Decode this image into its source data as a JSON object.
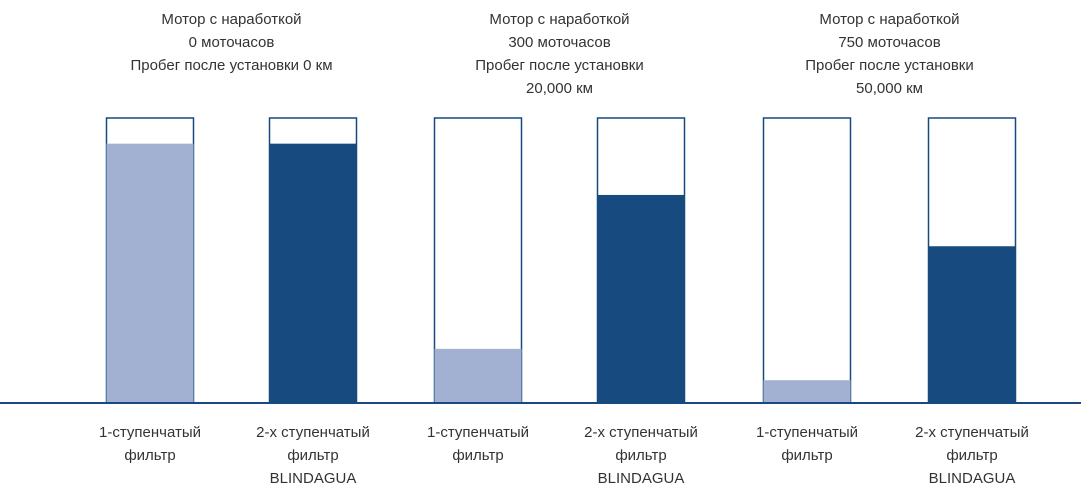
{
  "chart_data": {
    "type": "bar",
    "groups": [
      [
        "Мотор с наработкой",
        "0 моточасов",
        "Пробег после установки 0 км"
      ],
      [
        "Мотор с наработкой",
        "300 моточасов",
        "Пробег после установки",
        "20,000 км"
      ],
      [
        "Мотор с наработкой",
        "750 моточасов",
        "Пробег после установки",
        "50,000 км"
      ]
    ],
    "categories": [
      [
        "1-ступенчатый",
        "фильтр"
      ],
      [
        "2-х ступенчатый",
        "фильтр",
        "BLINDAGUA"
      ],
      [
        "1-ступенчатый",
        "фильтр"
      ],
      [
        "2-х ступенчатый",
        "фильтр",
        "BLINDAGUA"
      ],
      [
        "1-ступенчатый",
        "фильтр"
      ],
      [
        "2-х ступенчатый",
        "фильтр",
        "BLINDAGUA"
      ]
    ],
    "values": [
      91,
      91,
      19,
      73,
      8,
      55
    ],
    "colors": [
      "#a2b1d1",
      "#174a7e",
      "#a2b1d1",
      "#174a7e",
      "#a2b1d1",
      "#174a7e"
    ],
    "outline_color": "#174a7e",
    "ylim": [
      0,
      100
    ]
  }
}
